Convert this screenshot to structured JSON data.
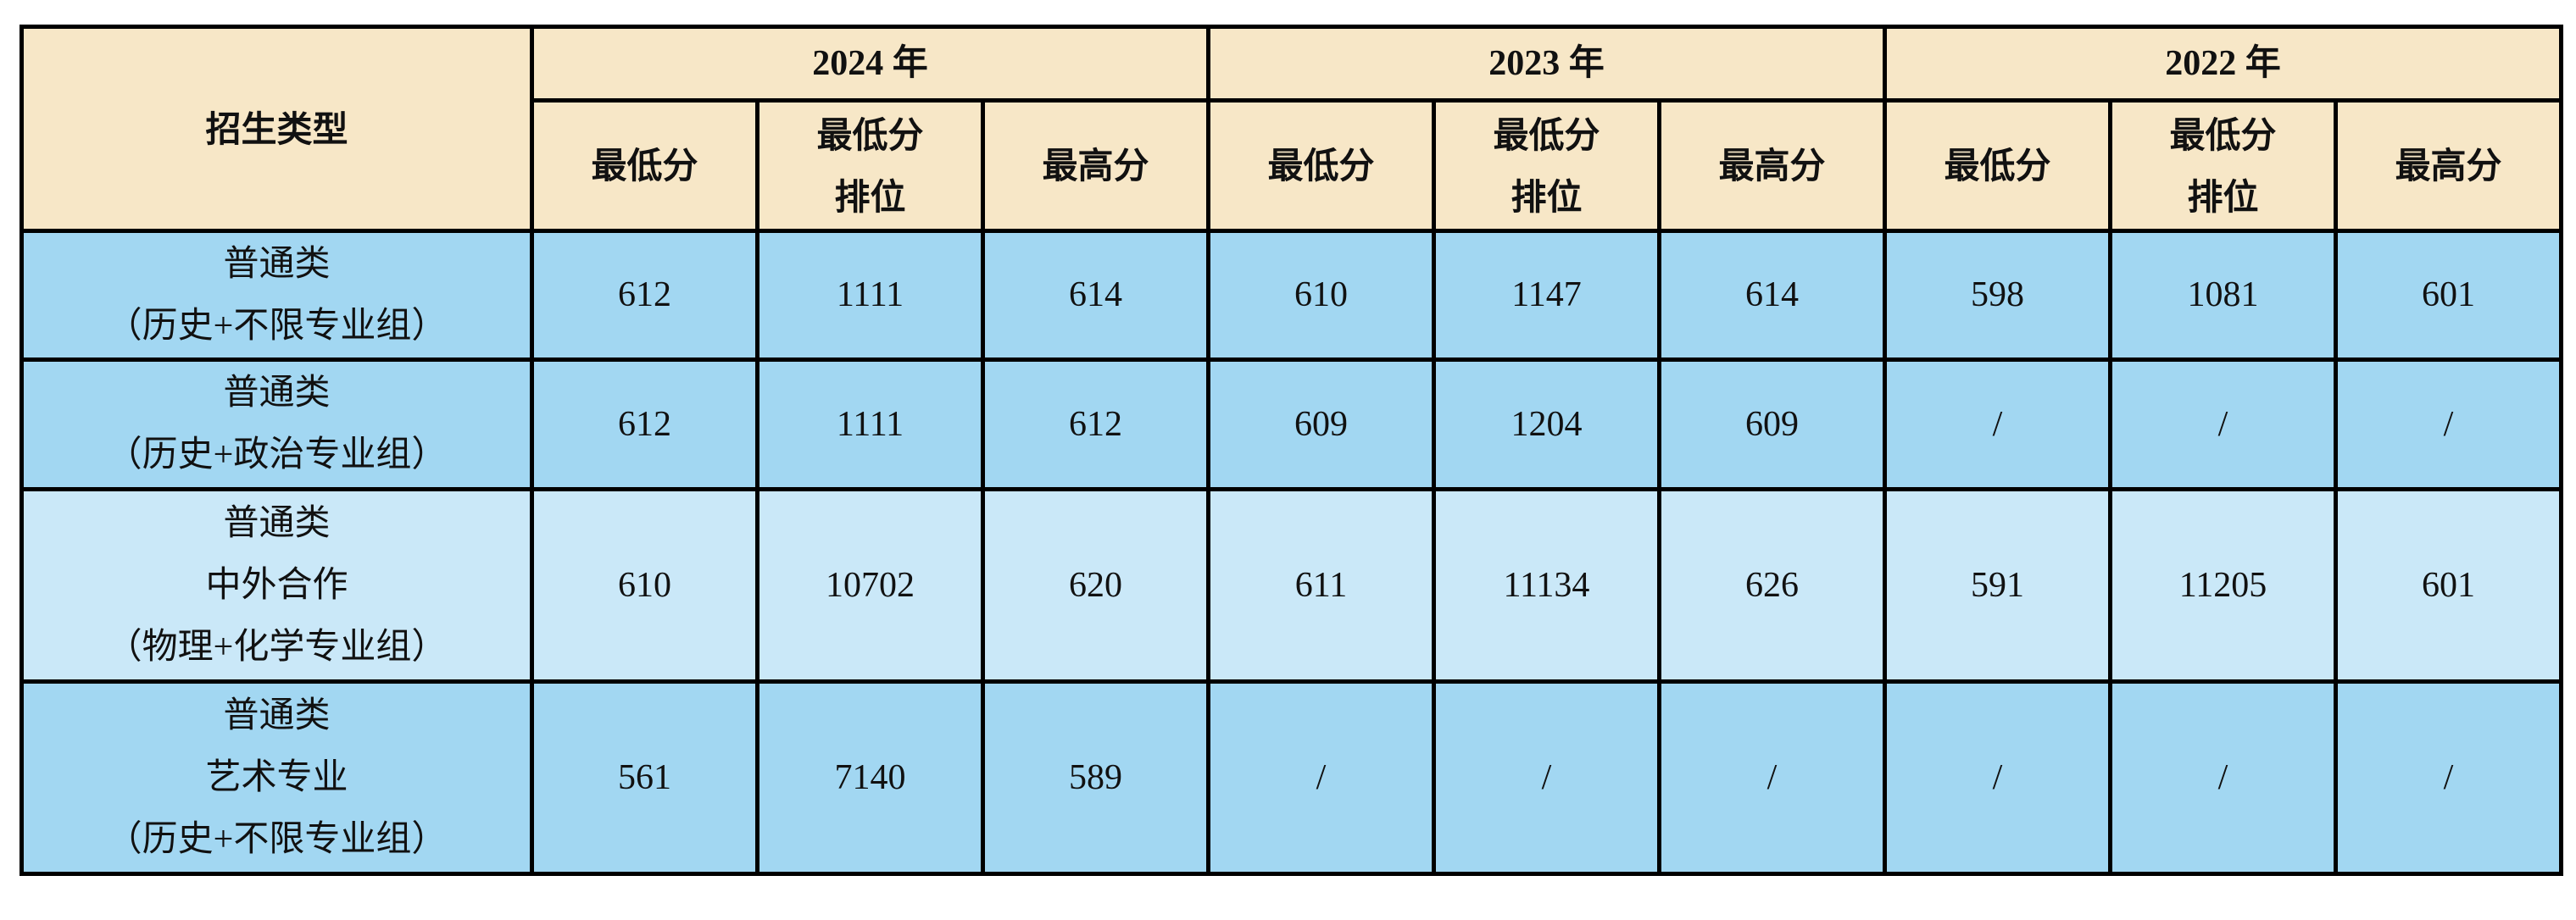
{
  "table": {
    "header": {
      "category": "招生类型",
      "groups": [
        {
          "year": "2024 年",
          "columns": [
            [
              "最低分"
            ],
            [
              "最低分",
              "排位"
            ],
            [
              "最高分"
            ]
          ]
        },
        {
          "year": "2023 年",
          "columns": [
            [
              "最低分"
            ],
            [
              "最低分",
              "排位"
            ],
            [
              "最高分"
            ]
          ]
        },
        {
          "year": "2022 年",
          "columns": [
            [
              "最低分"
            ],
            [
              "最低分",
              "排位"
            ],
            [
              "最高分"
            ]
          ]
        }
      ]
    },
    "rows": [
      {
        "label": [
          "普通类",
          "（历史+不限专业组）"
        ],
        "values": [
          "612",
          "1111",
          "614",
          "610",
          "1147",
          "614",
          "598",
          "1081",
          "601"
        ]
      },
      {
        "label": [
          "普通类",
          "（历史+政治专业组）"
        ],
        "values": [
          "612",
          "1111",
          "612",
          "609",
          "1204",
          "609",
          "/",
          "/",
          "/"
        ]
      },
      {
        "label": [
          "普通类",
          "中外合作",
          "（物理+化学专业组）"
        ],
        "values": [
          "610",
          "10702",
          "620",
          "611",
          "11134",
          "626",
          "591",
          "11205",
          "601"
        ]
      },
      {
        "label": [
          "普通类",
          "艺术专业",
          "（历史+不限专业组）"
        ],
        "values": [
          "561",
          "7140",
          "589",
          "/",
          "/",
          "/",
          "/",
          "/",
          "/"
        ]
      }
    ]
  }
}
